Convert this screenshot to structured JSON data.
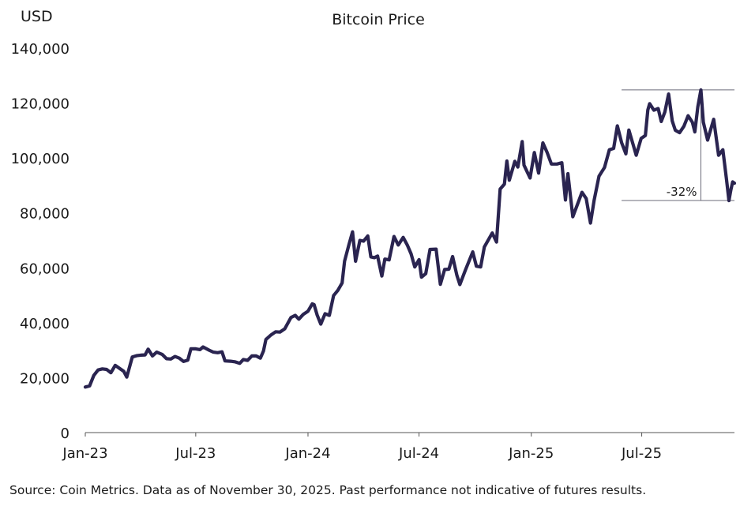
{
  "chart_data": {
    "type": "line",
    "title": "Bitcoin Price",
    "ylabel": "USD",
    "xlabel": "",
    "ylim": [
      0,
      140000
    ],
    "yticks": [
      "0",
      "20,000",
      "40,000",
      "60,000",
      "80,000",
      "100,000",
      "120,000",
      "140,000"
    ],
    "ytick_values": [
      0,
      20000,
      40000,
      60000,
      80000,
      100000,
      120000,
      140000
    ],
    "xlim": [
      "2023-01-01",
      "2025-11-30"
    ],
    "xticks": [
      "Jan-23",
      "Jul-23",
      "Jan-24",
      "Jul-24",
      "Jan-25",
      "Jul-25"
    ],
    "xtick_dates": [
      "2023-01-01",
      "2023-07-01",
      "2024-01-01",
      "2024-07-01",
      "2025-01-01",
      "2025-07-01"
    ],
    "grid": false,
    "line_color": "#2a2450",
    "series": [
      {
        "values": [
          [
            "2023-01-01",
            16600
          ],
          [
            "2023-01-08",
            17000
          ],
          [
            "2023-01-15",
            20800
          ],
          [
            "2023-01-22",
            22800
          ],
          [
            "2023-01-29",
            23200
          ],
          [
            "2023-02-05",
            23000
          ],
          [
            "2023-02-12",
            21800
          ],
          [
            "2023-02-19",
            24500
          ],
          [
            "2023-02-26",
            23400
          ],
          [
            "2023-03-05",
            22300
          ],
          [
            "2023-03-10",
            20200
          ],
          [
            "2023-03-19",
            27500
          ],
          [
            "2023-03-26",
            28000
          ],
          [
            "2023-04-02",
            28200
          ],
          [
            "2023-04-09",
            28300
          ],
          [
            "2023-04-14",
            30400
          ],
          [
            "2023-04-21",
            27900
          ],
          [
            "2023-04-28",
            29300
          ],
          [
            "2023-05-07",
            28500
          ],
          [
            "2023-05-14",
            26900
          ],
          [
            "2023-05-21",
            26800
          ],
          [
            "2023-05-28",
            27700
          ],
          [
            "2023-06-04",
            27100
          ],
          [
            "2023-06-11",
            25900
          ],
          [
            "2023-06-18",
            26400
          ],
          [
            "2023-06-23",
            30500
          ],
          [
            "2023-07-01",
            30500
          ],
          [
            "2023-07-08",
            30200
          ],
          [
            "2023-07-13",
            31200
          ],
          [
            "2023-07-23",
            30000
          ],
          [
            "2023-07-30",
            29300
          ],
          [
            "2023-08-06",
            29100
          ],
          [
            "2023-08-13",
            29400
          ],
          [
            "2023-08-18",
            26100
          ],
          [
            "2023-08-27",
            26000
          ],
          [
            "2023-09-03",
            25800
          ],
          [
            "2023-09-11",
            25200
          ],
          [
            "2023-09-17",
            26600
          ],
          [
            "2023-09-24",
            26300
          ],
          [
            "2023-10-01",
            27900
          ],
          [
            "2023-10-08",
            27900
          ],
          [
            "2023-10-15",
            27100
          ],
          [
            "2023-10-20",
            29700
          ],
          [
            "2023-10-24",
            33900
          ],
          [
            "2023-11-01",
            35500
          ],
          [
            "2023-11-09",
            36700
          ],
          [
            "2023-11-16",
            36600
          ],
          [
            "2023-11-24",
            37800
          ],
          [
            "2023-12-04",
            41900
          ],
          [
            "2023-12-11",
            42700
          ],
          [
            "2023-12-17",
            41300
          ],
          [
            "2023-12-24",
            43000
          ],
          [
            "2024-01-01",
            44200
          ],
          [
            "2024-01-08",
            46900
          ],
          [
            "2024-01-11",
            46600
          ],
          [
            "2024-01-16",
            42800
          ],
          [
            "2024-01-22",
            39500
          ],
          [
            "2024-01-29",
            43300
          ],
          [
            "2024-02-05",
            42700
          ],
          [
            "2024-02-12",
            49900
          ],
          [
            "2024-02-19",
            51800
          ],
          [
            "2024-02-26",
            54500
          ],
          [
            "2024-03-01",
            62400
          ],
          [
            "2024-03-08",
            68300
          ],
          [
            "2024-03-14",
            73100
          ],
          [
            "2024-03-19",
            62400
          ],
          [
            "2024-03-26",
            70000
          ],
          [
            "2024-04-01",
            69700
          ],
          [
            "2024-04-08",
            71600
          ],
          [
            "2024-04-13",
            64000
          ],
          [
            "2024-04-19",
            63700
          ],
          [
            "2024-04-24",
            64300
          ],
          [
            "2024-05-01",
            57000
          ],
          [
            "2024-05-06",
            63200
          ],
          [
            "2024-05-13",
            62900
          ],
          [
            "2024-05-21",
            71400
          ],
          [
            "2024-05-28",
            68300
          ],
          [
            "2024-06-05",
            71100
          ],
          [
            "2024-06-12",
            68200
          ],
          [
            "2024-06-18",
            65100
          ],
          [
            "2024-06-24",
            60300
          ],
          [
            "2024-07-01",
            63000
          ],
          [
            "2024-07-05",
            56600
          ],
          [
            "2024-07-12",
            57900
          ],
          [
            "2024-07-19",
            66700
          ],
          [
            "2024-07-29",
            66800
          ],
          [
            "2024-08-05",
            54000
          ],
          [
            "2024-08-12",
            59400
          ],
          [
            "2024-08-19",
            59500
          ],
          [
            "2024-08-25",
            64100
          ],
          [
            "2024-09-01",
            57300
          ],
          [
            "2024-09-06",
            53900
          ],
          [
            "2024-09-15",
            59200
          ],
          [
            "2024-09-27",
            65800
          ],
          [
            "2024-10-03",
            60600
          ],
          [
            "2024-10-10",
            60300
          ],
          [
            "2024-10-16",
            67600
          ],
          [
            "2024-10-29",
            72700
          ],
          [
            "2024-11-05",
            69400
          ],
          [
            "2024-11-11",
            88700
          ],
          [
            "2024-11-18",
            90500
          ],
          [
            "2024-11-22",
            98900
          ],
          [
            "2024-11-26",
            91900
          ],
          [
            "2024-12-05",
            98800
          ],
          [
            "2024-12-10",
            96700
          ],
          [
            "2024-12-17",
            106000
          ],
          [
            "2024-12-20",
            97400
          ],
          [
            "2024-12-30",
            92700
          ],
          [
            "2025-01-06",
            102000
          ],
          [
            "2025-01-13",
            94500
          ],
          [
            "2025-01-20",
            105500
          ],
          [
            "2025-01-27",
            102000
          ],
          [
            "2025-02-03",
            97800
          ],
          [
            "2025-02-12",
            97800
          ],
          [
            "2025-02-20",
            98300
          ],
          [
            "2025-02-26",
            84700
          ],
          [
            "2025-03-02",
            94300
          ],
          [
            "2025-03-10",
            78600
          ],
          [
            "2025-03-17",
            82700
          ],
          [
            "2025-03-25",
            87500
          ],
          [
            "2025-04-01",
            85200
          ],
          [
            "2025-04-08",
            76300
          ],
          [
            "2025-04-14",
            84600
          ],
          [
            "2025-04-22",
            93400
          ],
          [
            "2025-05-01",
            96500
          ],
          [
            "2025-05-09",
            103000
          ],
          [
            "2025-05-16",
            103500
          ],
          [
            "2025-05-22",
            111700
          ],
          [
            "2025-05-29",
            105600
          ],
          [
            "2025-06-05",
            101500
          ],
          [
            "2025-06-10",
            110200
          ],
          [
            "2025-06-22",
            101000
          ],
          [
            "2025-06-30",
            107100
          ],
          [
            "2025-07-07",
            108200
          ],
          [
            "2025-07-11",
            117500
          ],
          [
            "2025-07-14",
            119800
          ],
          [
            "2025-07-21",
            117400
          ],
          [
            "2025-07-28",
            118000
          ],
          [
            "2025-08-02",
            113300
          ],
          [
            "2025-08-08",
            116800
          ],
          [
            "2025-08-14",
            123300
          ],
          [
            "2025-08-20",
            113500
          ],
          [
            "2025-08-25",
            110100
          ],
          [
            "2025-09-01",
            109200
          ],
          [
            "2025-09-08",
            111500
          ],
          [
            "2025-09-15",
            115400
          ],
          [
            "2025-09-22",
            113000
          ],
          [
            "2025-09-26",
            109500
          ],
          [
            "2025-10-01",
            118600
          ],
          [
            "2025-10-06",
            124800
          ],
          [
            "2025-10-10",
            113000
          ],
          [
            "2025-10-17",
            106500
          ],
          [
            "2025-10-27",
            114100
          ],
          [
            "2025-11-04",
            101000
          ],
          [
            "2025-11-11",
            103000
          ],
          [
            "2025-11-17",
            92000
          ],
          [
            "2025-11-21",
            84500
          ],
          [
            "2025-11-24",
            88300
          ],
          [
            "2025-11-27",
            91300
          ],
          [
            "2025-11-30",
            90800
          ]
        ]
      }
    ],
    "annotations": [
      {
        "text": "-32%",
        "peak_value": 124800,
        "trough_value": 84500,
        "peak_date": "2025-10-06",
        "range_start": "2025-05-29",
        "range_end": "2025-11-30"
      }
    ]
  },
  "footer": {
    "source": "Source: Coin Metrics. Data as of November 30, 2025. Past performance not indicative of futures results."
  }
}
